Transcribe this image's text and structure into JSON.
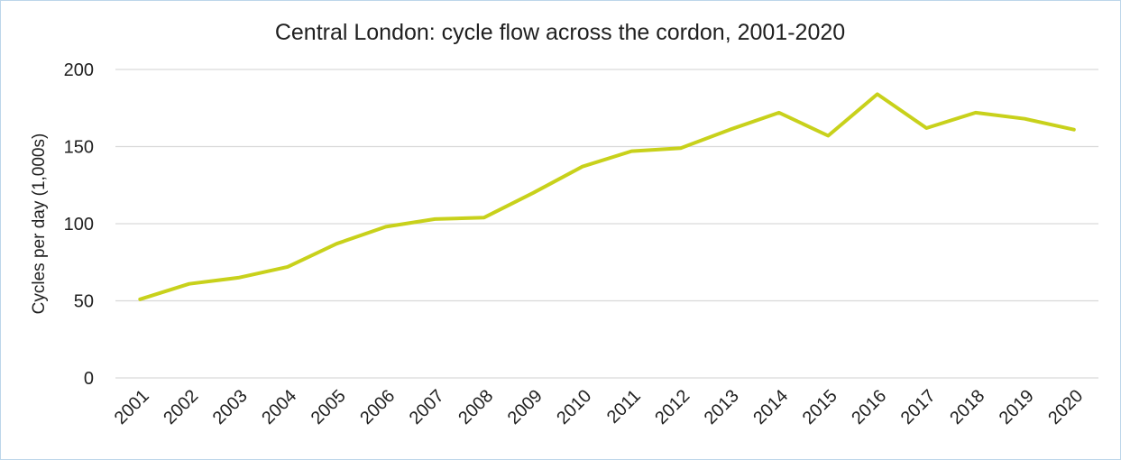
{
  "chart_data": {
    "type": "line",
    "title": "Central London: cycle flow across the cordon, 2001-2020",
    "xlabel": "",
    "ylabel": "Cycles per day (1,000s)",
    "categories": [
      "2001",
      "2002",
      "2003",
      "2004",
      "2005",
      "2006",
      "2007",
      "2008",
      "2009",
      "2010",
      "2011",
      "2012",
      "2013",
      "2014",
      "2015",
      "2016",
      "2017",
      "2018",
      "2019",
      "2020"
    ],
    "series": [
      {
        "values": [
          51,
          61,
          65,
          72,
          87,
          98,
          103,
          104,
          120,
          137,
          147,
          149,
          161,
          172,
          157,
          184,
          162,
          172,
          168,
          161
        ],
        "color": "#c8d11b"
      }
    ],
    "ylim": [
      0,
      200
    ],
    "yticks": [
      "0",
      "50",
      "100",
      "150",
      "200"
    ],
    "grid": true,
    "legend": "none"
  }
}
